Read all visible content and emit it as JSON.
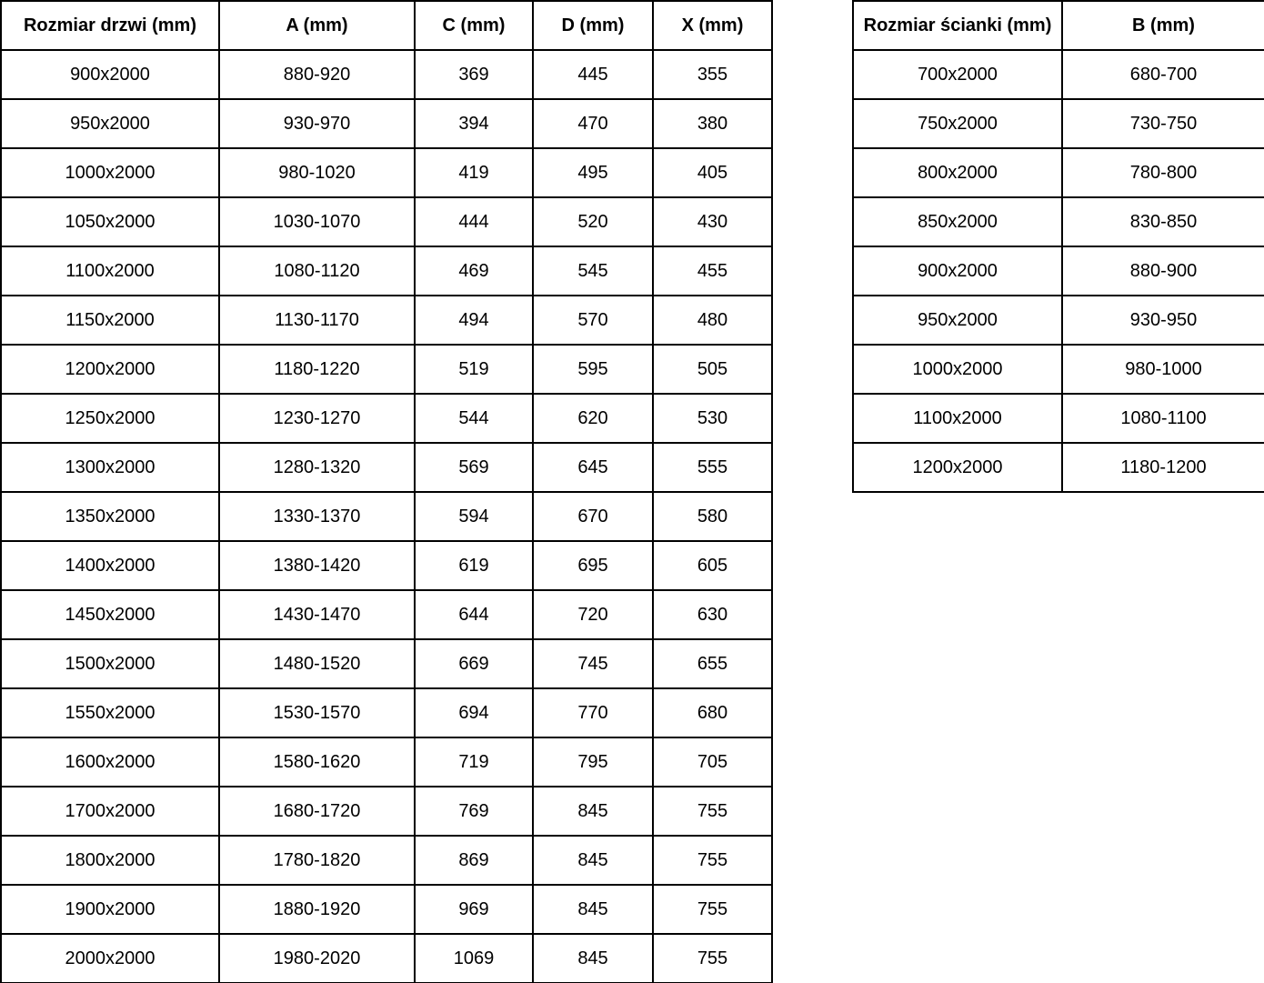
{
  "page": {
    "background_color": "#ffffff",
    "border_color": "#000000",
    "text_color": "#000000"
  },
  "door_table": {
    "headers": [
      "Rozmiar drzwi (mm)",
      "A (mm)",
      "C (mm)",
      "D (mm)",
      "X (mm)"
    ],
    "rows": [
      [
        "900x2000",
        "880-920",
        "369",
        "445",
        "355"
      ],
      [
        "950x2000",
        "930-970",
        "394",
        "470",
        "380"
      ],
      [
        "1000x2000",
        "980-1020",
        "419",
        "495",
        "405"
      ],
      [
        "1050x2000",
        "1030-1070",
        "444",
        "520",
        "430"
      ],
      [
        "1100x2000",
        "1080-1120",
        "469",
        "545",
        "455"
      ],
      [
        "1150x2000",
        "1130-1170",
        "494",
        "570",
        "480"
      ],
      [
        "1200x2000",
        "1180-1220",
        "519",
        "595",
        "505"
      ],
      [
        "1250x2000",
        "1230-1270",
        "544",
        "620",
        "530"
      ],
      [
        "1300x2000",
        "1280-1320",
        "569",
        "645",
        "555"
      ],
      [
        "1350x2000",
        "1330-1370",
        "594",
        "670",
        "580"
      ],
      [
        "1400x2000",
        "1380-1420",
        "619",
        "695",
        "605"
      ],
      [
        "1450x2000",
        "1430-1470",
        "644",
        "720",
        "630"
      ],
      [
        "1500x2000",
        "1480-1520",
        "669",
        "745",
        "655"
      ],
      [
        "1550x2000",
        "1530-1570",
        "694",
        "770",
        "680"
      ],
      [
        "1600x2000",
        "1580-1620",
        "719",
        "795",
        "705"
      ],
      [
        "1700x2000",
        "1680-1720",
        "769",
        "845",
        "755"
      ],
      [
        "1800x2000",
        "1780-1820",
        "869",
        "845",
        "755"
      ],
      [
        "1900x2000",
        "1880-1920",
        "969",
        "845",
        "755"
      ],
      [
        "2000x2000",
        "1980-2020",
        "1069",
        "845",
        "755"
      ]
    ]
  },
  "wall_table": {
    "headers": [
      "Rozmiar ścianki (mm)",
      "B (mm)"
    ],
    "rows": [
      [
        "700x2000",
        "680-700"
      ],
      [
        "750x2000",
        "730-750"
      ],
      [
        "800x2000",
        "780-800"
      ],
      [
        "850x2000",
        "830-850"
      ],
      [
        "900x2000",
        "880-900"
      ],
      [
        "950x2000",
        "930-950"
      ],
      [
        "1000x2000",
        "980-1000"
      ],
      [
        "1100x2000",
        "1080-1100"
      ],
      [
        "1200x2000",
        "1180-1200"
      ]
    ]
  }
}
